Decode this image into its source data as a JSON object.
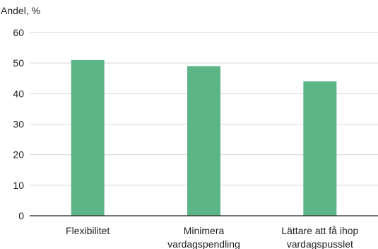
{
  "chart_data": {
    "type": "bar",
    "ylabel": "Andel, %",
    "xlabel": "",
    "title": "",
    "ylim": [
      0,
      60
    ],
    "yticks": [
      0,
      10,
      20,
      30,
      40,
      50,
      60
    ],
    "grid": true,
    "categories": [
      [
        "Flexibilitet"
      ],
      [
        "Minimera",
        "vardagspendling"
      ],
      [
        "Lättare att få ihop",
        "vardagspusslet"
      ]
    ],
    "values": [
      51,
      49,
      44
    ],
    "colors": {
      "bar": "#5bb586",
      "grid": "#d9d9d9",
      "axis": "#222222",
      "text": "#222222"
    }
  }
}
